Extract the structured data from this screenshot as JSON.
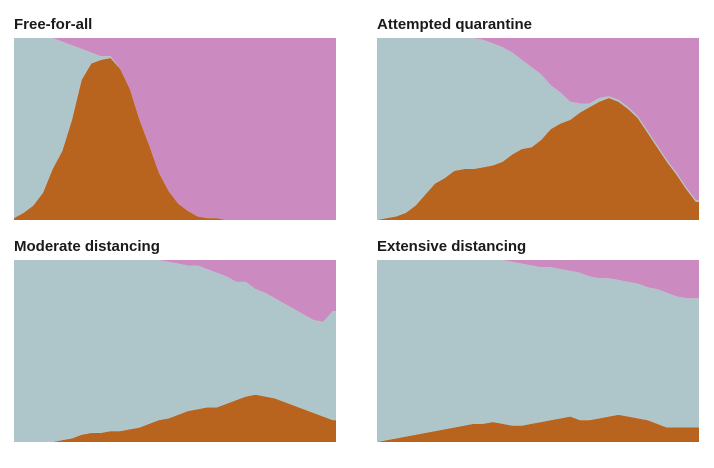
{
  "colors": {
    "healthy": "#aec5c9",
    "sick": "#b8641f",
    "recovered": "#cb8ac0"
  },
  "chart_data": [
    {
      "type": "area",
      "title": "Free-for-all",
      "x": [
        0,
        3,
        6,
        9,
        12,
        15,
        18,
        21,
        24,
        27,
        30,
        33,
        36,
        39,
        42,
        45,
        48,
        51,
        54,
        57,
        60,
        63,
        66,
        69,
        72,
        75,
        78,
        81,
        84,
        87,
        90,
        93,
        96,
        99,
        100
      ],
      "series": [
        {
          "color": "#b8641f",
          "values": [
            0.01,
            0.04,
            0.08,
            0.15,
            0.28,
            0.38,
            0.55,
            0.77,
            0.86,
            0.88,
            0.89,
            0.83,
            0.72,
            0.55,
            0.41,
            0.26,
            0.16,
            0.09,
            0.05,
            0.02,
            0.01,
            0.01,
            0,
            0,
            0,
            0,
            0,
            0,
            0,
            0,
            0,
            0,
            0,
            0,
            0
          ]
        },
        {
          "color": "#aec5c9",
          "values": [
            0.99,
            0.96,
            0.92,
            0.85,
            0.72,
            0.6,
            0.41,
            0.17,
            0.06,
            0.02,
            0.01,
            0,
            0,
            0,
            0,
            0,
            0,
            0,
            0,
            0,
            0,
            0,
            0,
            0,
            0,
            0,
            0,
            0,
            0,
            0,
            0,
            0,
            0,
            0,
            0
          ]
        },
        {
          "color": "#cb8ac0",
          "values": [
            0,
            0,
            0,
            0,
            0,
            0.02,
            0.04,
            0.06,
            0.08,
            0.1,
            0.1,
            0.17,
            0.28,
            0.45,
            0.59,
            0.74,
            0.84,
            0.91,
            0.95,
            0.98,
            0.99,
            0.99,
            1,
            1,
            1,
            1,
            1,
            1,
            1,
            1,
            1,
            1,
            1,
            1,
            1
          ]
        }
      ],
      "xlim": [
        0,
        100
      ],
      "ylim": [
        0,
        1
      ]
    },
    {
      "type": "area",
      "title": "Attempted quarantine",
      "x": [
        0,
        3,
        6,
        9,
        12,
        15,
        18,
        21,
        24,
        27,
        30,
        33,
        36,
        39,
        42,
        45,
        48,
        51,
        54,
        57,
        60,
        63,
        66,
        69,
        72,
        75,
        78,
        81,
        84,
        87,
        90,
        93,
        96,
        99,
        100
      ],
      "series": [
        {
          "color": "#b8641f",
          "values": [
            0,
            0.01,
            0.02,
            0.04,
            0.08,
            0.14,
            0.2,
            0.23,
            0.27,
            0.28,
            0.28,
            0.29,
            0.3,
            0.32,
            0.36,
            0.39,
            0.4,
            0.44,
            0.5,
            0.53,
            0.55,
            0.59,
            0.62,
            0.65,
            0.67,
            0.65,
            0.61,
            0.56,
            0.48,
            0.4,
            0.32,
            0.25,
            0.17,
            0.1,
            0.1
          ]
        },
        {
          "color": "#aec5c9",
          "values": [
            1,
            0.99,
            0.98,
            0.96,
            0.92,
            0.86,
            0.8,
            0.77,
            0.73,
            0.72,
            0.72,
            0.7,
            0.67,
            0.63,
            0.56,
            0.49,
            0.44,
            0.36,
            0.24,
            0.17,
            0.1,
            0.05,
            0.02,
            0.02,
            0.01,
            0.01,
            0.01,
            0.01,
            0.01,
            0.01,
            0.01,
            0.01,
            0.01,
            0.01,
            0.01
          ]
        },
        {
          "color": "#cb8ac0",
          "values": [
            0,
            0,
            0,
            0,
            0,
            0,
            0,
            0,
            0,
            0,
            0,
            0.01,
            0.03,
            0.05,
            0.08,
            0.12,
            0.16,
            0.2,
            0.26,
            0.3,
            0.35,
            0.36,
            0.36,
            0.33,
            0.32,
            0.34,
            0.38,
            0.43,
            0.51,
            0.59,
            0.67,
            0.74,
            0.82,
            0.89,
            0.89
          ]
        }
      ],
      "xlim": [
        0,
        100
      ],
      "ylim": [
        0,
        1
      ]
    },
    {
      "type": "area",
      "title": "Moderate distancing",
      "x": [
        0,
        3,
        6,
        9,
        12,
        15,
        18,
        21,
        24,
        27,
        30,
        33,
        36,
        39,
        42,
        45,
        48,
        51,
        54,
        57,
        60,
        63,
        66,
        69,
        72,
        75,
        78,
        81,
        84,
        87,
        90,
        93,
        96,
        99,
        100
      ],
      "series": [
        {
          "color": "#b8641f",
          "values": [
            0,
            0,
            0,
            0,
            0,
            0.01,
            0.02,
            0.04,
            0.05,
            0.05,
            0.06,
            0.06,
            0.07,
            0.08,
            0.1,
            0.12,
            0.13,
            0.15,
            0.17,
            0.18,
            0.19,
            0.19,
            0.21,
            0.23,
            0.25,
            0.26,
            0.25,
            0.24,
            0.22,
            0.2,
            0.18,
            0.16,
            0.14,
            0.12,
            0.12
          ]
        },
        {
          "color": "#aec5c9",
          "values": [
            1,
            1,
            1,
            1,
            1,
            0.99,
            0.98,
            0.96,
            0.95,
            0.95,
            0.94,
            0.94,
            0.93,
            0.92,
            0.9,
            0.88,
            0.86,
            0.83,
            0.8,
            0.79,
            0.76,
            0.74,
            0.7,
            0.65,
            0.63,
            0.58,
            0.57,
            0.55,
            0.54,
            0.53,
            0.52,
            0.51,
            0.52,
            0.6,
            0.6
          ]
        },
        {
          "color": "#cb8ac0",
          "values": [
            0,
            0,
            0,
            0,
            0,
            0,
            0,
            0,
            0,
            0,
            0,
            0,
            0,
            0,
            0,
            0,
            0.01,
            0.02,
            0.03,
            0.03,
            0.05,
            0.07,
            0.09,
            0.12,
            0.12,
            0.16,
            0.18,
            0.21,
            0.24,
            0.27,
            0.3,
            0.33,
            0.34,
            0.28,
            0.28
          ]
        }
      ],
      "xlim": [
        0,
        100
      ],
      "ylim": [
        0,
        1
      ]
    },
    {
      "type": "area",
      "title": "Extensive distancing",
      "x": [
        0,
        3,
        6,
        9,
        12,
        15,
        18,
        21,
        24,
        27,
        30,
        33,
        36,
        39,
        42,
        45,
        48,
        51,
        54,
        57,
        60,
        63,
        66,
        69,
        72,
        75,
        78,
        81,
        84,
        87,
        90,
        93,
        96,
        99,
        100
      ],
      "series": [
        {
          "color": "#b8641f",
          "values": [
            0,
            0.01,
            0.02,
            0.03,
            0.04,
            0.05,
            0.06,
            0.07,
            0.08,
            0.09,
            0.1,
            0.1,
            0.11,
            0.1,
            0.09,
            0.09,
            0.1,
            0.11,
            0.12,
            0.13,
            0.14,
            0.12,
            0.12,
            0.13,
            0.14,
            0.15,
            0.14,
            0.13,
            0.12,
            0.1,
            0.08,
            0.08,
            0.08,
            0.08,
            0.08
          ]
        },
        {
          "color": "#aec5c9",
          "values": [
            1,
            0.99,
            0.98,
            0.97,
            0.96,
            0.95,
            0.94,
            0.93,
            0.92,
            0.91,
            0.9,
            0.9,
            0.89,
            0.9,
            0.9,
            0.89,
            0.87,
            0.85,
            0.84,
            0.82,
            0.8,
            0.81,
            0.79,
            0.77,
            0.76,
            0.74,
            0.74,
            0.74,
            0.73,
            0.74,
            0.74,
            0.72,
            0.71,
            0.71,
            0.71
          ]
        },
        {
          "color": "#cb8ac0",
          "values": [
            0,
            0,
            0,
            0,
            0,
            0,
            0,
            0,
            0,
            0,
            0,
            0,
            0,
            0,
            0.01,
            0.02,
            0.03,
            0.04,
            0.04,
            0.05,
            0.06,
            0.07,
            0.09,
            0.1,
            0.1,
            0.11,
            0.12,
            0.13,
            0.15,
            0.16,
            0.18,
            0.2,
            0.21,
            0.21,
            0.21
          ]
        }
      ],
      "xlim": [
        0,
        100
      ],
      "ylim": [
        0,
        1
      ]
    }
  ]
}
